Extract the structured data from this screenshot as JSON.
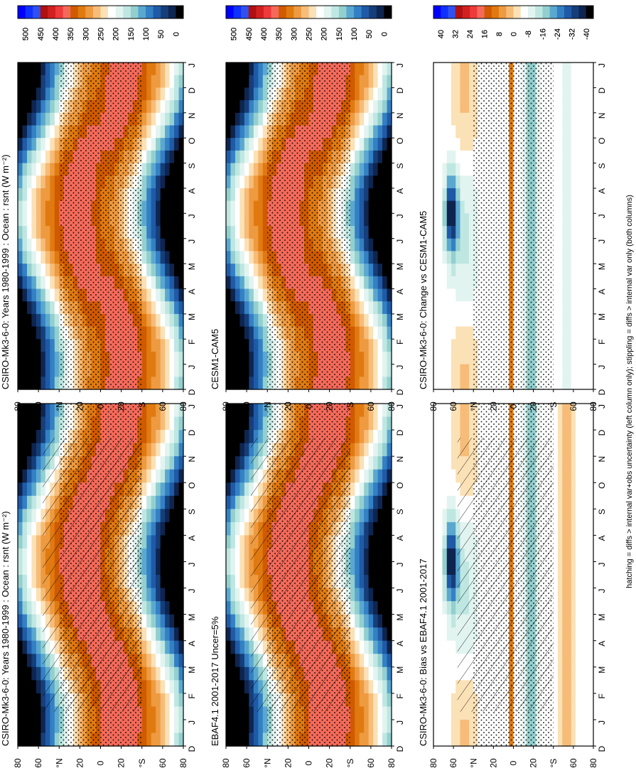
{
  "figure": {
    "footnote": "hatching = diffs > internal var+obs uncertainty (left column only); stippling = diffs > internal var only (both columns)"
  },
  "chart_data": [
    {
      "type": "heatmap",
      "id": "p1",
      "title": "CSIRO-Mk3-6-0: Years 1980-1999 : Ocean : rsnt (W m⁻²)",
      "x_ticks": [
        "D",
        "J",
        "F",
        "M",
        "A",
        "M",
        "J",
        "J",
        "A",
        "S",
        "O",
        "N",
        "D",
        "J"
      ],
      "y_ticks": [
        "80",
        "60",
        "°N",
        "20",
        "0",
        "20",
        "°S",
        "60",
        "80"
      ],
      "scale": "abs",
      "hatch": true,
      "stipple": true
    },
    {
      "type": "heatmap",
      "id": "p2",
      "title": "CSIRO-Mk3-6-0: Years 1980-1999 : Ocean : rsnt (W m⁻²)",
      "x_ticks": [
        "D",
        "J",
        "F",
        "M",
        "A",
        "M",
        "J",
        "J",
        "A",
        "S",
        "O",
        "N",
        "D",
        "J"
      ],
      "y_ticks": [
        "80",
        "60",
        "°N",
        "20",
        "0",
        "20",
        "°S",
        "60",
        "80"
      ],
      "scale": "abs",
      "hatch": false,
      "stipple": true
    },
    {
      "type": "heatmap",
      "id": "p3",
      "title": "EBAF4.1 2001-2017 Uncer=5%",
      "x_ticks": [
        "D",
        "J",
        "F",
        "M",
        "A",
        "M",
        "J",
        "J",
        "A",
        "S",
        "O",
        "N",
        "D",
        "J"
      ],
      "y_ticks": [
        "80",
        "60",
        "°N",
        "20",
        "0",
        "20",
        "°S",
        "60",
        "80"
      ],
      "scale": "abs",
      "hatch": true,
      "stipple": true
    },
    {
      "type": "heatmap",
      "id": "p4",
      "title": "CESM1-CAM5",
      "x_ticks": [
        "D",
        "J",
        "F",
        "M",
        "A",
        "M",
        "J",
        "J",
        "A",
        "S",
        "O",
        "N",
        "D",
        "J"
      ],
      "y_ticks": [
        "80",
        "60",
        "°N",
        "20",
        "0",
        "20",
        "°S",
        "60",
        "80"
      ],
      "scale": "abs",
      "hatch": false,
      "stipple": true
    },
    {
      "type": "heatmap",
      "id": "p5",
      "title": "CSIRO-Mk3-6-0: Bias vs EBAF4.1 2001-2017",
      "x_ticks": [
        "D",
        "J",
        "F",
        "M",
        "A",
        "M",
        "J",
        "J",
        "A",
        "S",
        "O",
        "N",
        "D",
        "J"
      ],
      "y_ticks": [
        "80",
        "60",
        "°N",
        "20",
        "0",
        "20",
        "°S",
        "60",
        "80"
      ],
      "scale": "diff",
      "hatch": true,
      "stipple": true
    },
    {
      "type": "heatmap",
      "id": "p6",
      "title": "CSIRO-Mk3-6-0: Change vs CESM1-CAM5",
      "x_ticks": [
        "D",
        "J",
        "F",
        "M",
        "A",
        "M",
        "J",
        "J",
        "A",
        "S",
        "O",
        "N",
        "D",
        "J"
      ],
      "y_ticks": [
        "80",
        "60",
        "°N",
        "20",
        "0",
        "20",
        "°S",
        "60",
        "80"
      ],
      "scale": "diff",
      "hatch": false,
      "stipple": true
    }
  ],
  "colorbars": {
    "abs": {
      "labels": [
        "500",
        "450",
        "400",
        "350",
        "300",
        "250",
        "200",
        "150",
        "100",
        "50",
        "0"
      ],
      "colors": [
        "#0000ff",
        "#1030ff",
        "#3050f0",
        "#b01010",
        "#d22020",
        "#ee3a3a",
        "#f46a5a",
        "#d05a00",
        "#e07a10",
        "#ee9a40",
        "#f6bc78",
        "#fbe1b6",
        "#ffffff",
        "#e2f4f0",
        "#bfe7e2",
        "#93cfcf",
        "#5aa8d0",
        "#3380c4",
        "#1f5aa6",
        "#163e7a",
        "#0e2550",
        "#000000"
      ]
    },
    "diff": {
      "labels": [
        "40",
        "32",
        "24",
        "16",
        "8",
        "0",
        "-8",
        "-16",
        "-24",
        "-32",
        "-40"
      ],
      "colors": [
        "#0000ff",
        "#1030ff",
        "#3050f0",
        "#b01010",
        "#d22020",
        "#ee3a3a",
        "#f46a5a",
        "#d05a00",
        "#e07a10",
        "#ee9a40",
        "#f6bc78",
        "#fbe1b6",
        "#ffffff",
        "#e2f4f0",
        "#bfe7e2",
        "#93cfcf",
        "#5aa8d0",
        "#3380c4",
        "#1f5aa6",
        "#163e7a",
        "#0e2550",
        "#000000"
      ]
    }
  }
}
